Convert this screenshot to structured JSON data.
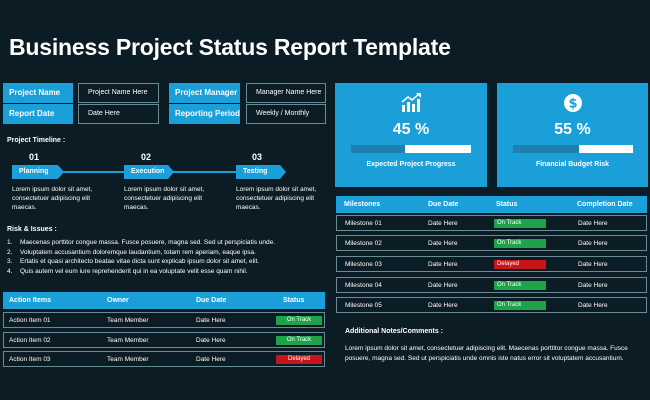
{
  "title": "Business Project Status Report Template",
  "info": [
    {
      "label": "Project Name",
      "value": "Project Name Here"
    },
    {
      "label": "Project Manager",
      "value": "Manager Name Here"
    },
    {
      "label": "Report Date",
      "value": "Date Here"
    },
    {
      "label": "Reporting Period",
      "value": "Weekly / Monthly"
    }
  ],
  "cards": [
    {
      "value": "45 %",
      "progress_fraction": 0.45,
      "caption": "Expected Project Progress",
      "icon": "chart-up-icon"
    },
    {
      "value": "55 %",
      "progress_fraction": 0.55,
      "caption": "Financial Budget Risk",
      "icon": "dollar-icon"
    }
  ],
  "timeline": {
    "heading": "Project Timeline :",
    "steps": [
      {
        "num": "01",
        "label": "Planning",
        "desc": "Lorem ipsum dolor sit amet, consectetuer adipiscing elit maecas."
      },
      {
        "num": "02",
        "label": "Execution",
        "desc": "Lorem ipsum dolor sit amet, consectetuer adipiscing elit maecas."
      },
      {
        "num": "03",
        "label": "Testing",
        "desc": "Lorem ipsum dolor sit amet, consectetuer adipiscing elit maecas."
      }
    ]
  },
  "risks": {
    "heading": "Risk & Issues :",
    "items": [
      "Maecenas porttitor congue massa. Fusce posuere, magna sed. Sed ut perspiciatis unde.",
      "Voluptatem accusantium doloremque laudantium, totam rem aperiam, eaque ipsa.",
      "Ertatis et quasi architecto beatae vitae dicta sunt explicab ipsum dolor sit amet, elit.",
      "Quis autem vel eum iure reprehenderit qui in ea voluptate velit esse quam nihil."
    ]
  },
  "actions": {
    "headers": [
      "Action Items",
      "Owner",
      "Due Date",
      "Status"
    ],
    "rows": [
      {
        "item": "Action Item 01",
        "owner": "Team Member",
        "due": "Date Here",
        "status": "On Track"
      },
      {
        "item": "Action Item 02",
        "owner": "Team Member",
        "due": "Date Here",
        "status": "On Track"
      },
      {
        "item": "Action Item 03",
        "owner": "Team Member",
        "due": "Date Here",
        "status": "Delayed"
      }
    ]
  },
  "milestones": {
    "headers": [
      "Milestones",
      "Due Date",
      "Status",
      "Completion Date"
    ],
    "rows": [
      {
        "name": "Milestone 01",
        "due": "Date Here",
        "status": "On Track",
        "done": "Date Here"
      },
      {
        "name": "Milestone 02",
        "due": "Date Here",
        "status": "On Track",
        "done": "Date Here"
      },
      {
        "name": "Milestone 03",
        "due": "Date Here",
        "status": "Delayed",
        "done": "Date Here"
      },
      {
        "name": "Milestone 04",
        "due": "Date Here",
        "status": "On Track",
        "done": "Date Here"
      },
      {
        "name": "Milestone 05",
        "due": "Date Here",
        "status": "On Track",
        "done": "Date Here"
      }
    ]
  },
  "notes": {
    "heading": "Additional Notes/Comments :",
    "text": "Lorem ipsum dolor sit amet, consectetuer adipiscing elit. Maecenas porttitor congue massa. Fusce posuere, magna sed. Sed ut perspiciatis unde omnis iste natus error sit voluptatem accusantium."
  },
  "colors": {
    "accent": "#1b9fd8",
    "on_track": "#1ea34a",
    "delayed": "#c9151a",
    "background": "#0b1c24"
  }
}
